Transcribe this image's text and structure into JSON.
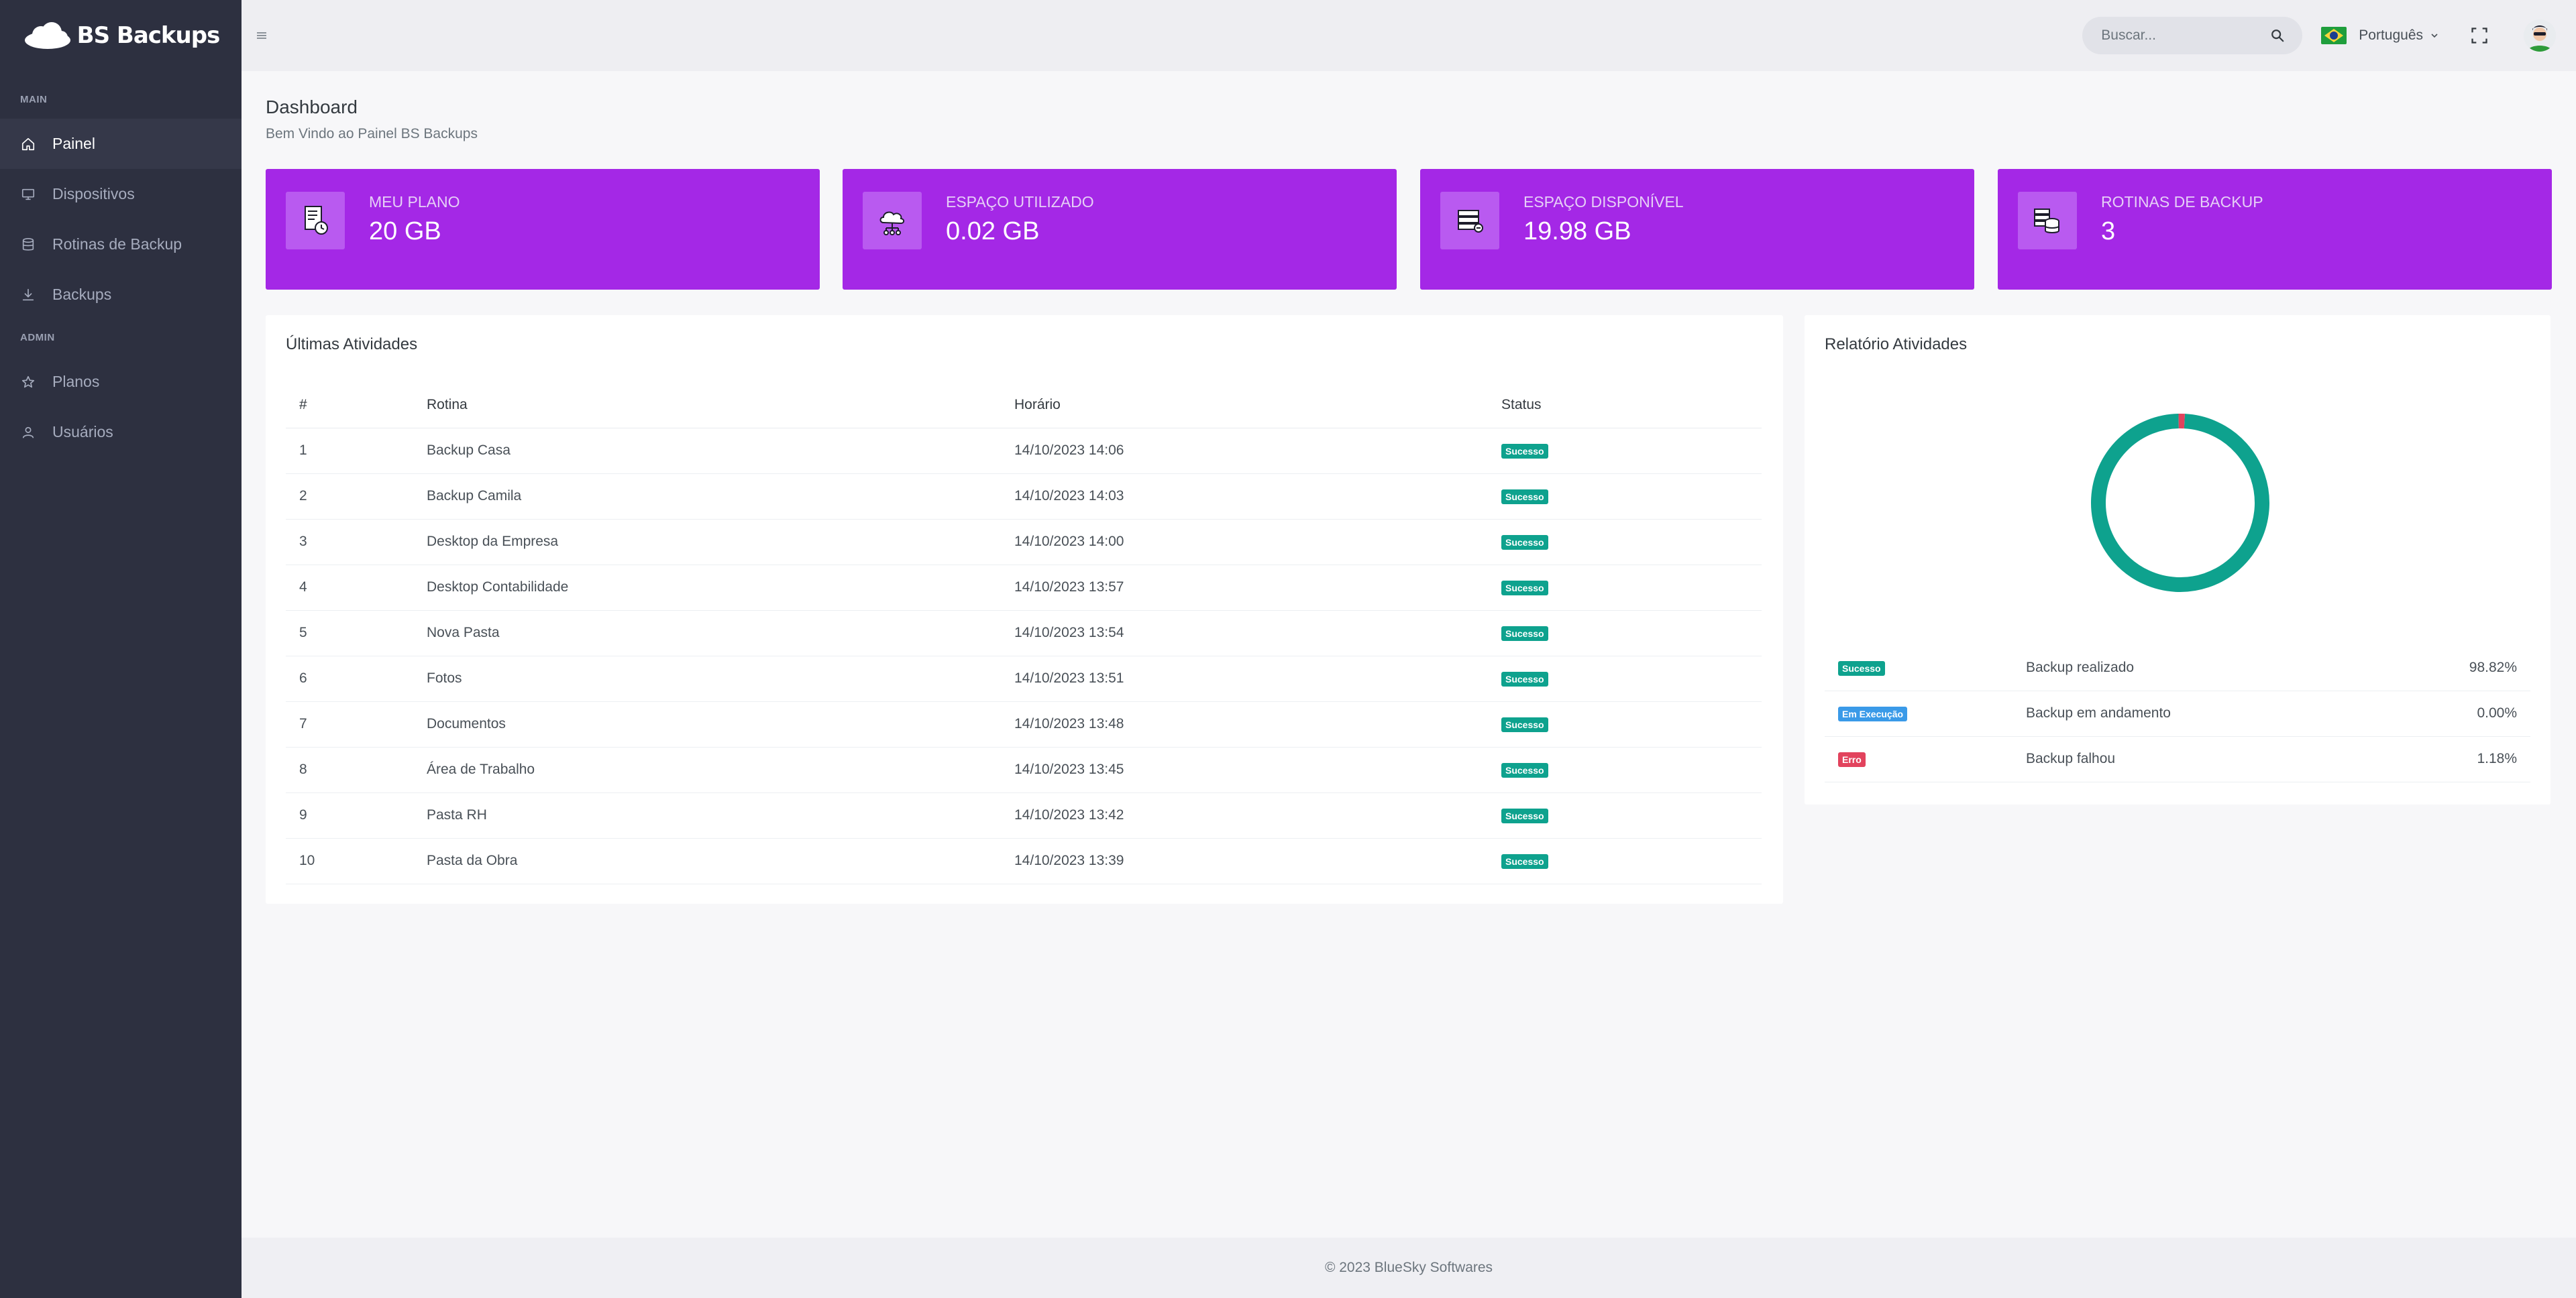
{
  "brand": {
    "name": "BS Backups"
  },
  "sidebar": {
    "sections": [
      {
        "title": "MAIN",
        "items": [
          {
            "label": "Painel",
            "icon": "home-icon",
            "active": true
          },
          {
            "label": "Dispositivos",
            "icon": "monitor-icon"
          },
          {
            "label": "Rotinas de Backup",
            "icon": "database-icon"
          },
          {
            "label": "Backups",
            "icon": "download-icon"
          }
        ]
      },
      {
        "title": "ADMIN",
        "items": [
          {
            "label": "Planos",
            "icon": "star-icon"
          },
          {
            "label": "Usuários",
            "icon": "user-icon"
          }
        ]
      }
    ]
  },
  "topbar": {
    "search_placeholder": "Buscar...",
    "language": "Português"
  },
  "page": {
    "title": "Dashboard",
    "subtitle": "Bem Vindo ao Painel BS Backups"
  },
  "stats": [
    {
      "label": "MEU PLANO",
      "value": "20 GB",
      "icon": "plan-document-icon"
    },
    {
      "label": "ESPAÇO UTILIZADO",
      "value": "0.02 GB",
      "icon": "cloud-network-icon"
    },
    {
      "label": "ESPAÇO DISPONÍVEL",
      "value": "19.98 GB",
      "icon": "server-icon"
    },
    {
      "label": "ROTINAS DE BACKUP",
      "value": "3",
      "icon": "database-stack-icon"
    }
  ],
  "activities": {
    "title": "Últimas Atividades",
    "columns": [
      "#",
      "Rotina",
      "Horário",
      "Status"
    ],
    "rows": [
      {
        "n": "1",
        "rotina": "Backup Casa",
        "horario": "14/10/2023 14:06",
        "status": "Sucesso"
      },
      {
        "n": "2",
        "rotina": "Backup Camila",
        "horario": "14/10/2023 14:03",
        "status": "Sucesso"
      },
      {
        "n": "3",
        "rotina": "Desktop da Empresa",
        "horario": "14/10/2023 14:00",
        "status": "Sucesso"
      },
      {
        "n": "4",
        "rotina": "Desktop Contabilidade",
        "horario": "14/10/2023 13:57",
        "status": "Sucesso"
      },
      {
        "n": "5",
        "rotina": "Nova Pasta",
        "horario": "14/10/2023 13:54",
        "status": "Sucesso"
      },
      {
        "n": "6",
        "rotina": "Fotos",
        "horario": "14/10/2023 13:51",
        "status": "Sucesso"
      },
      {
        "n": "7",
        "rotina": "Documentos",
        "horario": "14/10/2023 13:48",
        "status": "Sucesso"
      },
      {
        "n": "8",
        "rotina": "Área de Trabalho",
        "horario": "14/10/2023 13:45",
        "status": "Sucesso"
      },
      {
        "n": "9",
        "rotina": "Pasta RH",
        "horario": "14/10/2023 13:42",
        "status": "Sucesso"
      },
      {
        "n": "10",
        "rotina": "Pasta da Obra",
        "horario": "14/10/2023 13:39",
        "status": "Sucesso"
      }
    ]
  },
  "report": {
    "title": "Relatório Atividades",
    "rows": [
      {
        "badge": "Sucesso",
        "kind": "success",
        "label": "Backup realizado",
        "pct": "98.82%"
      },
      {
        "badge": "Em Execução",
        "kind": "running",
        "label": "Backup em andamento",
        "pct": "0.00%"
      },
      {
        "badge": "Erro",
        "kind": "error",
        "label": "Backup falhou",
        "pct": "1.18%"
      }
    ]
  },
  "chart_data": {
    "type": "pie",
    "categories": [
      "Sucesso",
      "Em Execução",
      "Erro"
    ],
    "values": [
      98.82,
      0.0,
      1.18
    ],
    "colors": [
      "#0ea28e",
      "#3a9ae8",
      "#e2435d"
    ]
  },
  "colors": {
    "sidebar_bg": "#2d3040",
    "card_bg": "#a428e6",
    "success": "#0ea28e",
    "running": "#3a9ae8",
    "error": "#e2435d"
  },
  "footer": {
    "text": "© 2023 BlueSky Softwares"
  }
}
